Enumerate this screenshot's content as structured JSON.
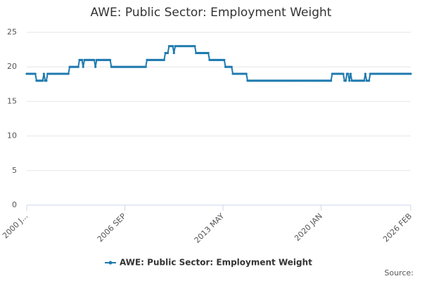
{
  "chart_data": {
    "type": "line",
    "title": "AWE: Public Sector: Employment Weight",
    "categories": [
      "2000 J...",
      null,
      null,
      null,
      null,
      null,
      null,
      null,
      null,
      null,
      null,
      null,
      null,
      null,
      null,
      null,
      null,
      null,
      null,
      null,
      null,
      null,
      null,
      null,
      null,
      null,
      null,
      null,
      null,
      null,
      null,
      null,
      null,
      null,
      null,
      null,
      null,
      null,
      null,
      null,
      null,
      null,
      null,
      null,
      null,
      null,
      null,
      null,
      null,
      null,
      null,
      null,
      null,
      null,
      null,
      null,
      null,
      null,
      null,
      null,
      null,
      null,
      null,
      null,
      null,
      null,
      null,
      null,
      null,
      null,
      null,
      null,
      null,
      null,
      null,
      null,
      null,
      null,
      null,
      null,
      "2006 SEP",
      null,
      null,
      null,
      null,
      null,
      null,
      null,
      null,
      null,
      null,
      null,
      null,
      null,
      null,
      null,
      null,
      null,
      null,
      null,
      null,
      null,
      null,
      null,
      null,
      null,
      null,
      null,
      null,
      null,
      null,
      null,
      null,
      null,
      null,
      null,
      null,
      null,
      null,
      null,
      null,
      null,
      null,
      null,
      null,
      null,
      null,
      null,
      null,
      null,
      null,
      null,
      null,
      null,
      null,
      null,
      null,
      null,
      null,
      null,
      null,
      null,
      null,
      null,
      null,
      null,
      null,
      null,
      null,
      null,
      null,
      null,
      null,
      null,
      null,
      null,
      null,
      null,
      null,
      null,
      "2013 MAY",
      null,
      null,
      null,
      null,
      null,
      null,
      null,
      null,
      null,
      null,
      null,
      null,
      null,
      null,
      null,
      null,
      null,
      null,
      null,
      null,
      null,
      null,
      null,
      null,
      null,
      null,
      null,
      null,
      null,
      null,
      null,
      null,
      null,
      null,
      null,
      null,
      null,
      null,
      null,
      null,
      null,
      null,
      null,
      null,
      null,
      null,
      null,
      null,
      null,
      null,
      null,
      null,
      null,
      null,
      null,
      null,
      null,
      null,
      null,
      null,
      null,
      null,
      null,
      null,
      null,
      null,
      null,
      null,
      null,
      null,
      null,
      null,
      null,
      null,
      null,
      null,
      null,
      null,
      null,
      "2020 JAN",
      null,
      null,
      null,
      null,
      null,
      null,
      null,
      null,
      null,
      null,
      null,
      null,
      null,
      null,
      null,
      null,
      null,
      null,
      null,
      null,
      null,
      null,
      null,
      null,
      null,
      null,
      null,
      null,
      null,
      null,
      null,
      null,
      null,
      null,
      null,
      null,
      null,
      null,
      null,
      null,
      null,
      null,
      null,
      null,
      null,
      null,
      null,
      null,
      null,
      null,
      null,
      null,
      null,
      null,
      null,
      null,
      null,
      null,
      null,
      null,
      null,
      null,
      null,
      null,
      null,
      null,
      null,
      null,
      null,
      null,
      null,
      null,
      "2026 FEB"
    ],
    "series": [
      {
        "name": "AWE: Public Sector: Employment Weight",
        "color": "#1f7ab0",
        "values": [
          19,
          19,
          19,
          19,
          19,
          19,
          19,
          19,
          18,
          18,
          18,
          18,
          18,
          18,
          19,
          18,
          18,
          19,
          19,
          19,
          19,
          19,
          19,
          19,
          19,
          19,
          19,
          19,
          19,
          19,
          19,
          19,
          19,
          19,
          19,
          20,
          20,
          20,
          20,
          20,
          20,
          20,
          20,
          21,
          21,
          21,
          20,
          21,
          21,
          21,
          21,
          21,
          21,
          21,
          21,
          21,
          20,
          21,
          21,
          21,
          21,
          21,
          21,
          21,
          21,
          21,
          21,
          21,
          21,
          20,
          20,
          20,
          20,
          20,
          20,
          20,
          20,
          20,
          20,
          20,
          20,
          20,
          20,
          20,
          20,
          20,
          20,
          20,
          20,
          20,
          20,
          20,
          20,
          20,
          20,
          20,
          20,
          20,
          21,
          21,
          21,
          21,
          21,
          21,
          21,
          21,
          21,
          21,
          21,
          21,
          21,
          21,
          21,
          22,
          22,
          22,
          23,
          23,
          23,
          23,
          22,
          23,
          23,
          23,
          23,
          23,
          23,
          23,
          23,
          23,
          23,
          23,
          23,
          23,
          23,
          23,
          23,
          23,
          22,
          22,
          22,
          22,
          22,
          22,
          22,
          22,
          22,
          22,
          22,
          21,
          21,
          21,
          21,
          21,
          21,
          21,
          21,
          21,
          21,
          21,
          21,
          21,
          20,
          20,
          20,
          20,
          20,
          20,
          19,
          19,
          19,
          19,
          19,
          19,
          19,
          19,
          19,
          19,
          19,
          19,
          18,
          18,
          18,
          18,
          18,
          18,
          18,
          18,
          18,
          18,
          18,
          18,
          18,
          18,
          18,
          18,
          18,
          18,
          18,
          18,
          18,
          18,
          18,
          18,
          18,
          18,
          18,
          18,
          18,
          18,
          18,
          18,
          18,
          18,
          18,
          18,
          18,
          18,
          18,
          18,
          18,
          18,
          18,
          18,
          18,
          18,
          18,
          18,
          18,
          18,
          18,
          18,
          18,
          18,
          18,
          18,
          18,
          18,
          18,
          18,
          18,
          18,
          18,
          18,
          18,
          18,
          18,
          18,
          18,
          19,
          19,
          19,
          19,
          19,
          19,
          19,
          19,
          19,
          19,
          18,
          18,
          19,
          19,
          18,
          19,
          18,
          18,
          18,
          18,
          18,
          18,
          18,
          18,
          18,
          18,
          18,
          19,
          18,
          18,
          18,
          19,
          19,
          19,
          19,
          19,
          19,
          19,
          19,
          19,
          19,
          19,
          19,
          19,
          19,
          19,
          19,
          19,
          19,
          19,
          19,
          19,
          19,
          19,
          19,
          19,
          19,
          19,
          19,
          19,
          19,
          19,
          19,
          19,
          19
        ]
      }
    ],
    "ylim": [
      0,
      25
    ],
    "yticks": [
      0,
      5,
      10,
      15,
      20,
      25
    ],
    "grid": true,
    "source": "Source:"
  }
}
